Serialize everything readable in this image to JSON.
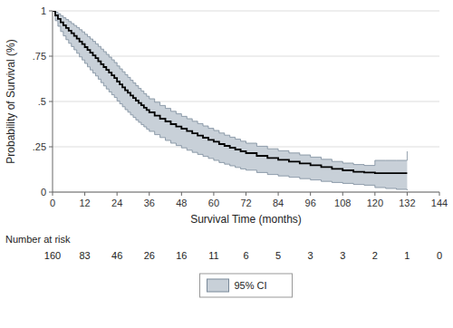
{
  "chart_data": {
    "type": "step",
    "xlabel": "Survival Time (months)",
    "ylabel": "Probability of Survival (%)",
    "xlim": [
      0,
      144
    ],
    "ylim": [
      0,
      1
    ],
    "xticks": [
      0,
      12,
      24,
      36,
      48,
      60,
      72,
      84,
      96,
      108,
      120,
      132,
      144
    ],
    "yticks": [
      0,
      {
        "value": 0.25,
        "label": ".25"
      },
      {
        "value": 0.5,
        "label": ".5"
      },
      {
        "value": 0.75,
        "label": ".75"
      },
      1
    ],
    "grid": true,
    "legend": "bottom",
    "x": [
      0,
      1,
      2,
      3,
      4,
      5,
      6,
      7,
      8,
      9,
      10,
      11,
      12,
      13,
      14,
      15,
      16,
      17,
      18,
      19,
      20,
      21,
      22,
      23,
      24,
      25,
      26,
      27,
      28,
      29,
      30,
      31,
      32,
      33,
      34,
      35,
      36,
      38,
      40,
      42,
      44,
      46,
      48,
      50,
      52,
      54,
      56,
      58,
      60,
      62,
      64,
      66,
      68,
      70,
      72,
      76,
      80,
      84,
      88,
      92,
      96,
      100,
      104,
      108,
      112,
      116,
      120,
      124,
      128,
      132
    ],
    "series": [
      {
        "name": "95% CI",
        "type": "band",
        "color": "#c8d0d8",
        "lower": [
          1.0,
          0.946,
          0.915,
          0.886,
          0.862,
          0.841,
          0.821,
          0.803,
          0.785,
          0.766,
          0.746,
          0.729,
          0.71,
          0.691,
          0.674,
          0.657,
          0.641,
          0.623,
          0.604,
          0.586,
          0.569,
          0.553,
          0.537,
          0.522,
          0.503,
          0.487,
          0.471,
          0.455,
          0.441,
          0.426,
          0.412,
          0.398,
          0.385,
          0.372,
          0.36,
          0.347,
          0.335,
          0.317,
          0.301,
          0.285,
          0.27,
          0.257,
          0.244,
          0.231,
          0.219,
          0.208,
          0.197,
          0.186,
          0.175,
          0.163,
          0.154,
          0.145,
          0.136,
          0.128,
          0.121,
          0.108,
          0.097,
          0.089,
          0.082,
          0.074,
          0.067,
          0.059,
          0.053,
          0.048,
          0.042,
          0.038,
          0.025,
          0.02,
          0.015,
          0.01
        ],
        "upper": [
          1.0,
          0.993,
          0.984,
          0.973,
          0.962,
          0.952,
          0.941,
          0.93,
          0.919,
          0.908,
          0.896,
          0.884,
          0.871,
          0.858,
          0.845,
          0.832,
          0.818,
          0.804,
          0.789,
          0.775,
          0.76,
          0.745,
          0.73,
          0.715,
          0.696,
          0.68,
          0.664,
          0.648,
          0.633,
          0.617,
          0.602,
          0.587,
          0.572,
          0.558,
          0.543,
          0.529,
          0.515,
          0.496,
          0.478,
          0.462,
          0.446,
          0.432,
          0.418,
          0.405,
          0.391,
          0.378,
          0.365,
          0.352,
          0.34,
          0.326,
          0.314,
          0.303,
          0.292,
          0.281,
          0.27,
          0.253,
          0.239,
          0.228,
          0.216,
          0.205,
          0.193,
          0.181,
          0.169,
          0.16,
          0.152,
          0.147,
          0.175,
          0.175,
          0.175,
          0.225
        ]
      },
      {
        "type": "step",
        "color": "#000000",
        "values": [
          1.0,
          0.975,
          0.956,
          0.937,
          0.921,
          0.906,
          0.891,
          0.877,
          0.862,
          0.847,
          0.831,
          0.817,
          0.8,
          0.784,
          0.769,
          0.754,
          0.739,
          0.722,
          0.706,
          0.69,
          0.674,
          0.659,
          0.644,
          0.629,
          0.61,
          0.594,
          0.578,
          0.562,
          0.548,
          0.533,
          0.519,
          0.505,
          0.492,
          0.479,
          0.466,
          0.453,
          0.44,
          0.422,
          0.405,
          0.39,
          0.375,
          0.362,
          0.35,
          0.337,
          0.324,
          0.312,
          0.3,
          0.288,
          0.278,
          0.265,
          0.255,
          0.245,
          0.235,
          0.225,
          0.215,
          0.2,
          0.188,
          0.178,
          0.168,
          0.158,
          0.148,
          0.138,
          0.128,
          0.12,
          0.112,
          0.108,
          0.104,
          0.104,
          0.104,
          0.104
        ]
      }
    ],
    "number_at_risk": {
      "label": "Number at risk",
      "x": [
        0,
        12,
        24,
        36,
        48,
        60,
        72,
        84,
        96,
        108,
        120,
        132,
        144
      ],
      "values": [
        160,
        83,
        46,
        26,
        16,
        11,
        6,
        5,
        3,
        3,
        2,
        1,
        0
      ]
    }
  }
}
